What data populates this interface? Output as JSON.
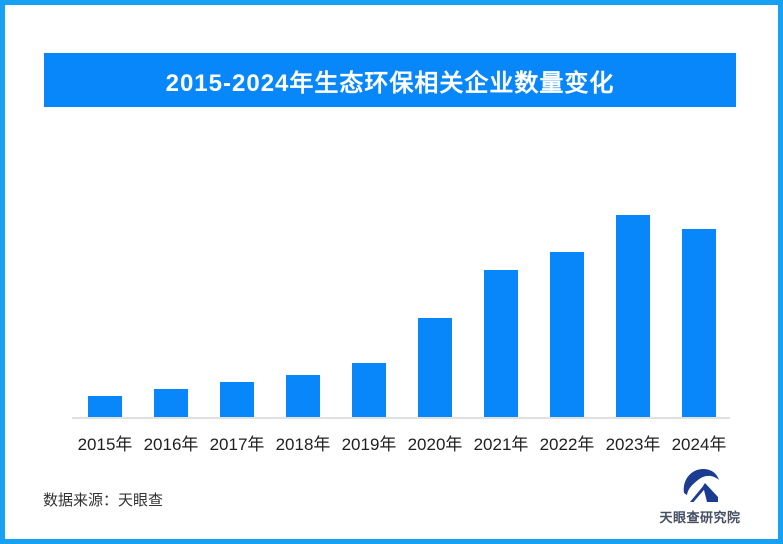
{
  "page": {
    "background_color": "#ffffff",
    "border_color": "#18A1F2"
  },
  "header": {
    "title": "2015-2024年生态环保相关企业数量变化",
    "banner_color": "#0787FA",
    "title_text_color": "#ffffff"
  },
  "chart_data": {
    "type": "bar",
    "title": "2015-2024年生态环保相关企业数量变化",
    "categories": [
      "2015年",
      "2016年",
      "2017年",
      "2018年",
      "2019年",
      "2020年",
      "2021年",
      "2022年",
      "2023年",
      "2024年"
    ],
    "values": [
      21,
      28,
      35,
      42,
      54,
      99,
      147,
      165,
      202,
      188
    ],
    "values_unit": "relative height (no y-axis labels or gridlines shown; 2023 is the peak, 2024 slightly lower)",
    "xlabel": "",
    "ylabel": "",
    "ylim": [
      0,
      230
    ],
    "grid": false,
    "legend_position": "none",
    "bar_color": "#0787FA",
    "axis_line_color": "#E0E0E0",
    "tick_label_color": "#1F1F1F"
  },
  "footer": {
    "source_label": "数据来源：天眼查",
    "logo_text": "天眼查研究院",
    "logo_color": "#1B3C91",
    "logo_text_color": "#454F63"
  }
}
